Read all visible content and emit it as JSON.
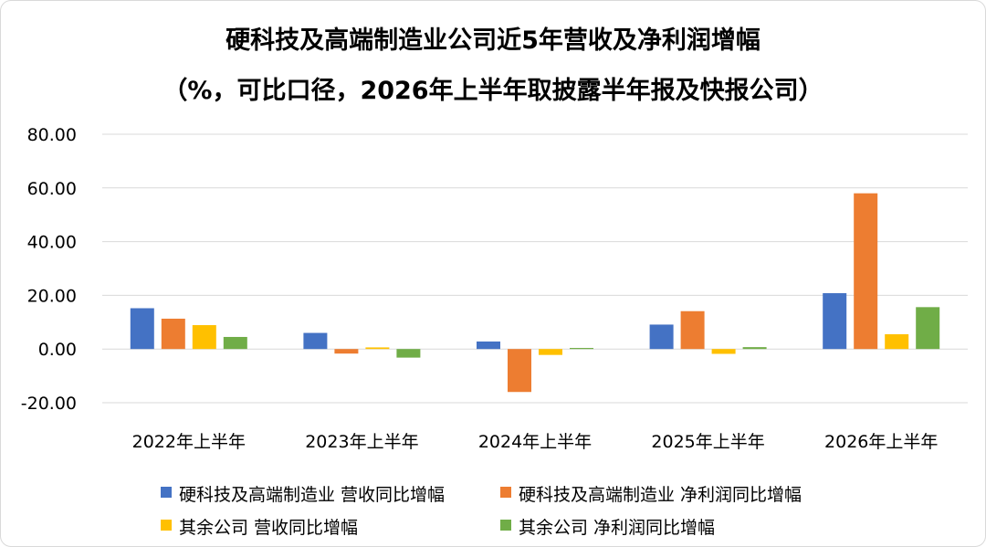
{
  "chart_data": {
    "type": "bar",
    "title": "硬科技及高端制造业公司近5年营收及净利润增幅",
    "subtitle": "（%，可比口径，2026年上半年取披露半年报及快报公司）",
    "categories": [
      "2022年上半年",
      "2023年上半年",
      "2024年上半年",
      "2025年上半年",
      "2026年上半年"
    ],
    "y_ticks": [
      "80.00",
      "60.00",
      "40.00",
      "20.00",
      "0.00",
      "-20.00"
    ],
    "ylim": [
      -20,
      80
    ],
    "grid": true,
    "legend_position": "bottom",
    "series": [
      {
        "name": "硬科技及高端制造业 营收同比增幅",
        "color": "#4472C4",
        "values": [
          15.2,
          6.0,
          2.8,
          9.1,
          20.8
        ]
      },
      {
        "name": "硬科技及高端制造业 净利润同比增幅",
        "color": "#ED7D31",
        "values": [
          11.3,
          -1.7,
          -16.0,
          14.1,
          58.0
        ]
      },
      {
        "name": "其余公司 营收同比增幅",
        "color": "#FFC000",
        "values": [
          8.9,
          0.6,
          -2.2,
          -1.8,
          5.5
        ]
      },
      {
        "name": "其余公司 净利润同比增幅",
        "color": "#70AD47",
        "values": [
          4.5,
          -3.2,
          0.4,
          0.7,
          15.6
        ]
      }
    ]
  }
}
